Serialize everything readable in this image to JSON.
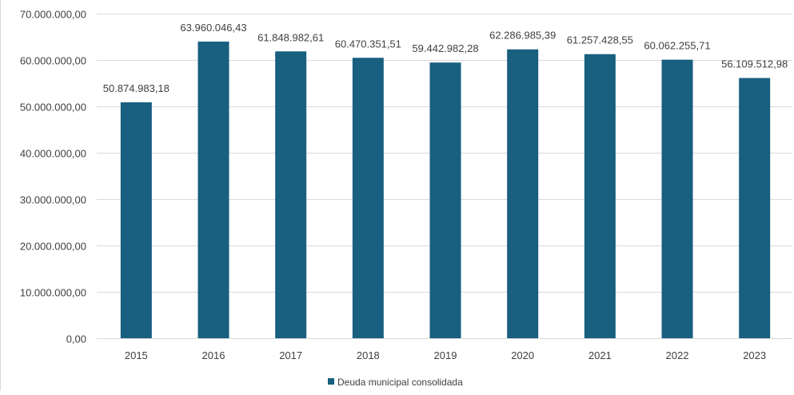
{
  "chart_data": {
    "type": "bar",
    "title": "",
    "xlabel": "",
    "ylabel": "",
    "categories": [
      "2015",
      "2016",
      "2017",
      "2018",
      "2019",
      "2020",
      "2021",
      "2022",
      "2023"
    ],
    "series": [
      {
        "name": "Deuda municipal consolidada",
        "values": [
          50874983.18,
          63960046.43,
          61848982.61,
          60470351.51,
          59442982.28,
          62286985.39,
          61257428.55,
          60062255.71,
          56109512.98
        ],
        "labels": [
          "50.874.983,18",
          "63.960.046,43",
          "61.848.982,61",
          "60.470.351,51",
          "59.442.982,28",
          "62.286.985,39",
          "61.257.428,55",
          "60.062.255,71",
          "56.109.512,98"
        ],
        "color": "#185f80"
      }
    ],
    "ylim": [
      0,
      70000000
    ],
    "yticks": [
      0,
      10000000,
      20000000,
      30000000,
      40000000,
      50000000,
      60000000,
      70000000
    ],
    "ytick_labels": [
      "0,00",
      "10.000.000,00",
      "20.000.000,00",
      "30.000.000,00",
      "40.000.000,00",
      "50.000.000,00",
      "60.000.000,00",
      "70.000.000,00"
    ],
    "grid": true,
    "legend": "bottom-center",
    "gridline_color": "#d9d9d9",
    "text_color": "#404040"
  }
}
